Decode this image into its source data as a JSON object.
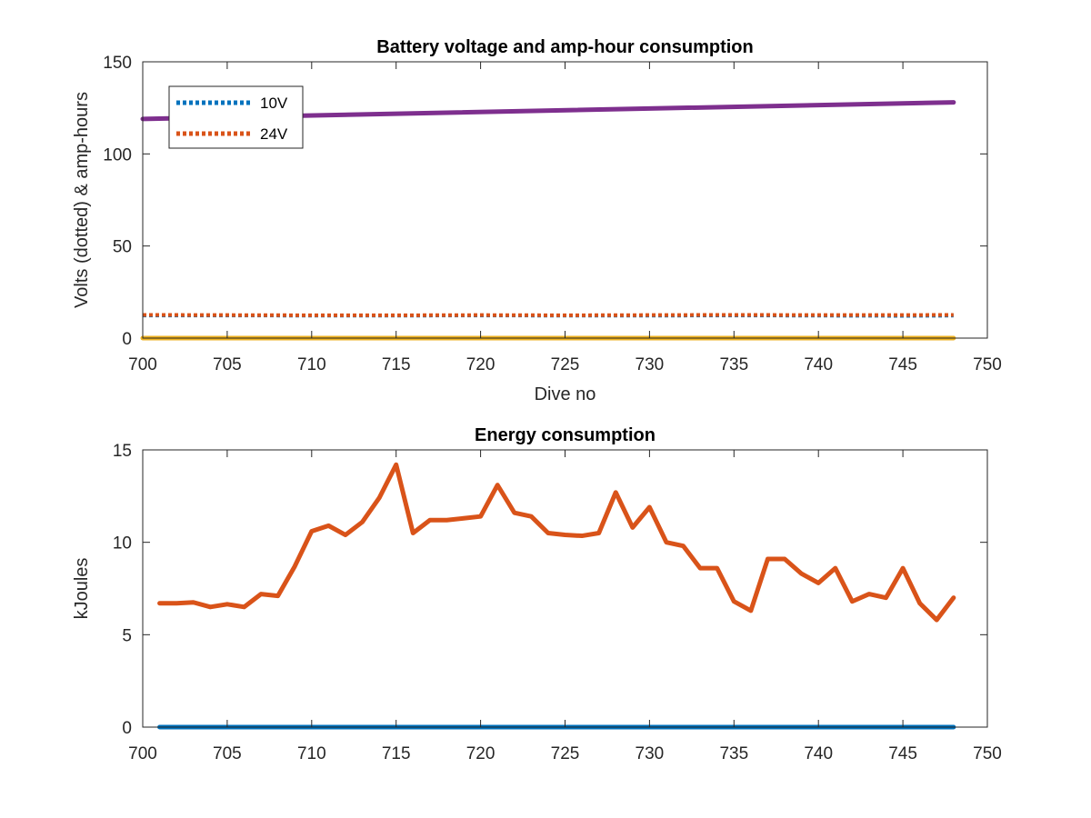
{
  "chart_data": [
    {
      "type": "line",
      "title": "Battery voltage and amp-hour consumption",
      "xlabel": "Dive no",
      "ylabel": "Volts (dotted) & amp-hours",
      "xlim": [
        700,
        750
      ],
      "ylim": [
        0,
        150
      ],
      "xticks": [
        700,
        705,
        710,
        715,
        720,
        725,
        730,
        735,
        740,
        745,
        750
      ],
      "yticks": [
        0,
        50,
        100,
        150
      ],
      "grid": false,
      "legend_position": "top-left",
      "series": [
        {
          "name": "10V",
          "color": "#0072BD",
          "style": "dotted",
          "x": [
            700,
            705,
            710,
            715,
            720,
            725,
            730,
            735,
            740,
            745,
            748
          ],
          "y": [
            12.3,
            12.3,
            12.2,
            12.2,
            12.3,
            12.2,
            12.2,
            12.3,
            12.2,
            12.1,
            12.2
          ]
        },
        {
          "name": "24V",
          "color": "#D95319",
          "style": "dotted",
          "x": [
            700,
            705,
            710,
            715,
            720,
            725,
            730,
            735,
            740,
            745,
            748
          ],
          "y": [
            12.6,
            12.5,
            12.4,
            12.4,
            12.5,
            12.4,
            12.5,
            12.6,
            12.5,
            12.5,
            12.6
          ]
        },
        {
          "color": "#7E2F8E",
          "style": "solid",
          "x": [
            700,
            748
          ],
          "y": [
            119,
            128
          ]
        },
        {
          "color": "#EDB120",
          "style": "solid",
          "x": [
            700,
            748
          ],
          "y": [
            0,
            0
          ]
        }
      ]
    },
    {
      "type": "line",
      "title": "Energy consumption",
      "xlabel": "",
      "ylabel": "kJoules",
      "xlim": [
        700,
        750
      ],
      "ylim": [
        0,
        15
      ],
      "xticks": [
        700,
        705,
        710,
        715,
        720,
        725,
        730,
        735,
        740,
        745,
        750
      ],
      "yticks": [
        0,
        5,
        10,
        15
      ],
      "grid": false,
      "series": [
        {
          "color": "#D95319",
          "style": "solid",
          "x": [
            701,
            702,
            703,
            704,
            705,
            706,
            707,
            708,
            709,
            710,
            711,
            712,
            713,
            714,
            715,
            716,
            717,
            718,
            719,
            720,
            721,
            722,
            723,
            724,
            725,
            726,
            727,
            728,
            729,
            730,
            731,
            732,
            733,
            734,
            735,
            736,
            737,
            738,
            739,
            740,
            741,
            742,
            743,
            744,
            745,
            746,
            747,
            748
          ],
          "y": [
            6.7,
            6.7,
            6.75,
            6.5,
            6.65,
            6.5,
            7.2,
            7.1,
            8.7,
            10.6,
            10.9,
            10.4,
            11.1,
            12.4,
            14.2,
            10.5,
            11.2,
            11.2,
            11.3,
            11.4,
            13.1,
            11.6,
            11.4,
            10.5,
            10.4,
            10.35,
            10.5,
            12.7,
            10.8,
            11.9,
            10.0,
            9.8,
            8.6,
            8.6,
            6.8,
            6.3,
            9.1,
            9.1,
            8.3,
            7.8,
            8.6,
            6.8,
            7.2,
            7.0,
            8.6,
            6.7,
            5.8,
            7.0
          ]
        },
        {
          "color": "#0072BD",
          "style": "solid",
          "x": [
            701,
            748
          ],
          "y": [
            0,
            0
          ]
        }
      ]
    }
  ]
}
